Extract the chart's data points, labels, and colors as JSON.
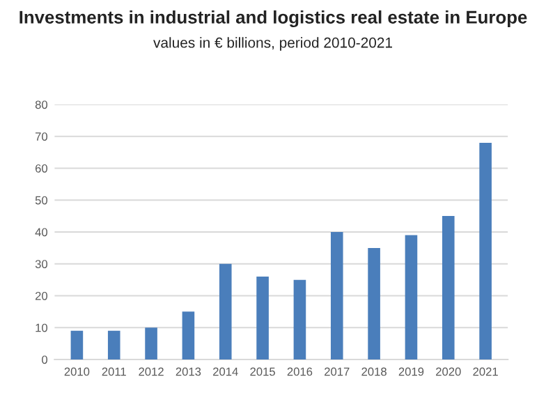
{
  "chart_data": {
    "type": "bar",
    "title": "Investments in industrial and logistics real estate in Europe",
    "subtitle": "values in € billions, period 2010-2021",
    "categories": [
      "2010",
      "2011",
      "2012",
      "2013",
      "2014",
      "2015",
      "2016",
      "2017",
      "2018",
      "2019",
      "2020",
      "2021"
    ],
    "values": [
      9,
      9,
      10,
      15,
      30,
      26,
      25,
      40,
      35,
      39,
      45,
      68
    ],
    "color": "#4a7ebb",
    "ylim": [
      0,
      80
    ],
    "yticks": [
      0,
      10,
      20,
      30,
      40,
      50,
      60,
      70,
      80
    ],
    "grid": "y"
  }
}
